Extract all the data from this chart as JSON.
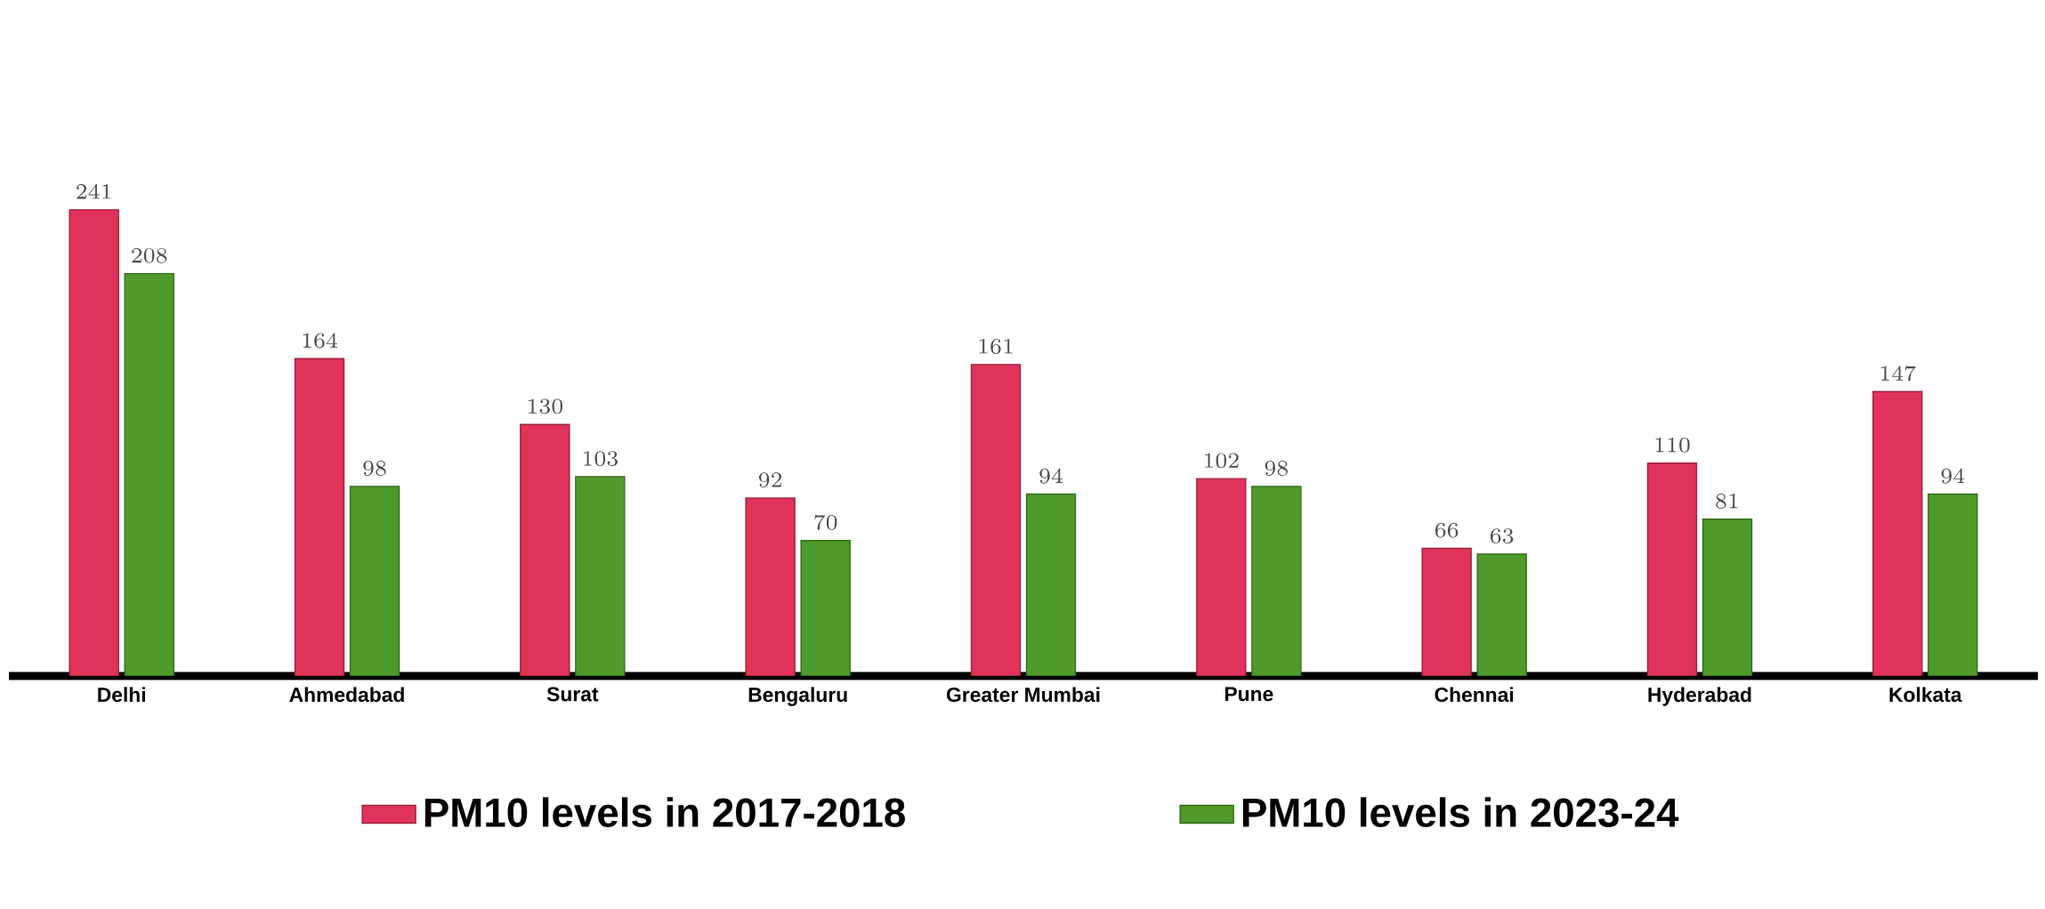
{
  "chart_data": {
    "type": "bar",
    "categories": [
      "Delhi",
      "Ahmedabad",
      "Surat",
      "Bengaluru",
      "Greater Mumbai",
      "Pune",
      "Chennai",
      "Hyderabad",
      "Kolkata"
    ],
    "series": [
      {
        "name": "PM10 levels in 2017-2018",
        "color": "#e0325a",
        "values": [
          241,
          164,
          130,
          92,
          161,
          102,
          66,
          110,
          147
        ]
      },
      {
        "name": "PM10 levels in 2023-24",
        "color": "#4e9a2a",
        "values": [
          208,
          98,
          103,
          70,
          94,
          98,
          63,
          81,
          94
        ]
      }
    ],
    "data_labels": true,
    "legend": "bottom"
  }
}
